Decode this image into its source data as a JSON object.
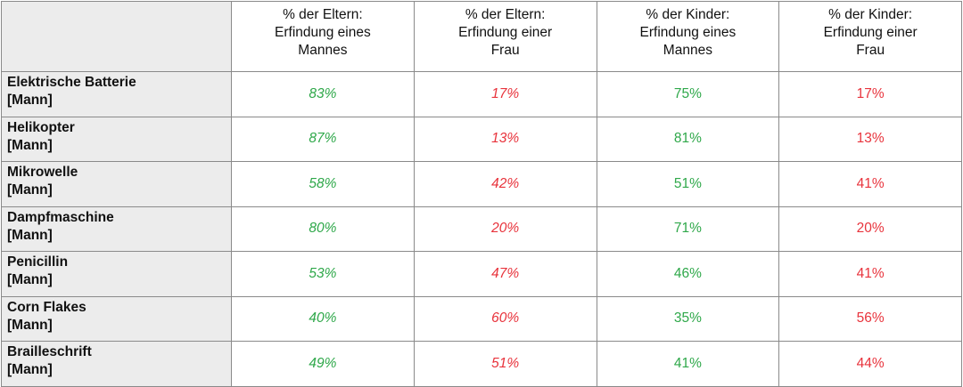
{
  "colors": {
    "male": "#2fa84a",
    "female": "#e8333c",
    "label_bg": "#ececec",
    "border": "#8a8a8a"
  },
  "chart_data": {
    "type": "table",
    "columns": [
      {
        "lines": [
          "% der Eltern:",
          "Erfindung eines",
          "Mannes"
        ]
      },
      {
        "lines": [
          "% der Eltern:",
          "Erfindung einer",
          "Frau"
        ]
      },
      {
        "lines": [
          "% der Kinder:",
          "Erfindung eines",
          "Mannes"
        ]
      },
      {
        "lines": [
          "% der Kinder:",
          "Erfindung einer",
          "Frau"
        ]
      }
    ],
    "rows": [
      {
        "name": "Elektrische Batterie",
        "tag": "[Mann]",
        "values": [
          "83%",
          "17%",
          "75%",
          "17%"
        ]
      },
      {
        "name": "Helikopter",
        "tag": "[Mann]",
        "values": [
          "87%",
          "13%",
          "81%",
          "13%"
        ]
      },
      {
        "name": "Mikrowelle",
        "tag": "[Mann]",
        "values": [
          "58%",
          "42%",
          "51%",
          "41%"
        ]
      },
      {
        "name": "Dampfmaschine",
        "tag": "[Mann]",
        "values": [
          "80%",
          "20%",
          "71%",
          "20%"
        ]
      },
      {
        "name": "Penicillin",
        "tag": "[Mann]",
        "values": [
          "53%",
          "47%",
          "46%",
          "41%"
        ]
      },
      {
        "name": "Corn Flakes",
        "tag": "[Mann]",
        "values": [
          "40%",
          "60%",
          "35%",
          "56%"
        ]
      },
      {
        "name": "Brailleschrift",
        "tag": "[Mann]",
        "values": [
          "49%",
          "51%",
          "41%",
          "44%"
        ]
      }
    ]
  }
}
